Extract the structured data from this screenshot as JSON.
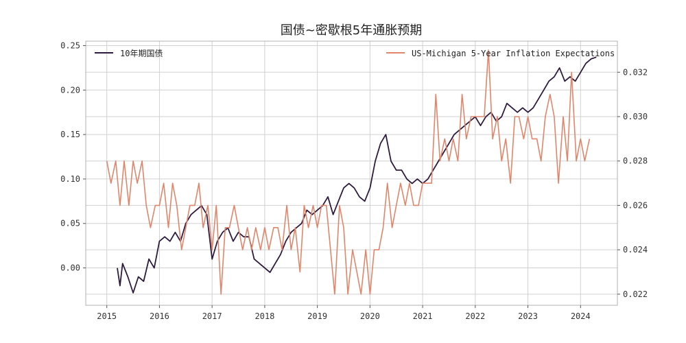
{
  "chart_data": {
    "type": "line",
    "title": "国债~密歇根5年通胀预期",
    "x_ticks": [
      "2015",
      "2016",
      "2017",
      "2018",
      "2019",
      "2020",
      "2021",
      "2022",
      "2023",
      "2024"
    ],
    "xlim": [
      2014.6,
      2024.7
    ],
    "grid": true,
    "left_axis": {
      "ylim": [
        -0.042,
        0.255
      ],
      "ticks": [
        0.0,
        0.05,
        0.1,
        0.15,
        0.2,
        0.25
      ],
      "tick_labels": [
        "0.00",
        "0.05",
        "0.10",
        "0.15",
        "0.20",
        "0.25"
      ]
    },
    "right_axis": {
      "ylim": [
        0.0215,
        0.0334
      ],
      "ticks": [
        0.022,
        0.024,
        0.026,
        0.028,
        0.03,
        0.032
      ],
      "tick_labels": [
        "0.022",
        "0.024",
        "0.026",
        "0.028",
        "0.030",
        "0.032"
      ]
    },
    "series": [
      {
        "name": "10年期国债",
        "axis": "left",
        "color": "#2e1a3e",
        "legend": "top-left",
        "x": [
          2015.2,
          2015.25,
          2015.3,
          2015.4,
          2015.5,
          2015.6,
          2015.7,
          2015.8,
          2015.9,
          2016.0,
          2016.1,
          2016.2,
          2016.3,
          2016.4,
          2016.5,
          2016.6,
          2016.7,
          2016.8,
          2016.9,
          2017.0,
          2017.1,
          2017.2,
          2017.3,
          2017.4,
          2017.5,
          2017.6,
          2017.7,
          2017.8,
          2017.9,
          2018.0,
          2018.1,
          2018.2,
          2018.3,
          2018.4,
          2018.5,
          2018.6,
          2018.7,
          2018.8,
          2018.9,
          2019.0,
          2019.1,
          2019.2,
          2019.3,
          2019.4,
          2019.5,
          2019.6,
          2019.7,
          2019.8,
          2019.9,
          2020.0,
          2020.1,
          2020.2,
          2020.3,
          2020.4,
          2020.5,
          2020.6,
          2020.7,
          2020.8,
          2020.9,
          2021.0,
          2021.1,
          2021.2,
          2021.3,
          2021.4,
          2021.5,
          2021.6,
          2021.7,
          2021.8,
          2021.9,
          2022.0,
          2022.1,
          2022.2,
          2022.3,
          2022.4,
          2022.5,
          2022.6,
          2022.7,
          2022.8,
          2022.9,
          2023.0,
          2023.1,
          2023.2,
          2023.3,
          2023.4,
          2023.5,
          2023.6,
          2023.7,
          2023.8,
          2023.9,
          2024.0,
          2024.1,
          2024.2,
          2024.3
        ],
        "values": [
          0.0,
          -0.02,
          0.005,
          -0.01,
          -0.028,
          -0.01,
          -0.015,
          0.01,
          0.0,
          0.03,
          0.035,
          0.03,
          0.04,
          0.03,
          0.05,
          0.06,
          0.065,
          0.07,
          0.06,
          0.01,
          0.03,
          0.04,
          0.045,
          0.03,
          0.04,
          0.035,
          0.035,
          0.01,
          0.005,
          0.0,
          -0.005,
          0.005,
          0.015,
          0.03,
          0.04,
          0.045,
          0.05,
          0.065,
          0.06,
          0.065,
          0.07,
          0.08,
          0.06,
          0.075,
          0.09,
          0.095,
          0.09,
          0.08,
          0.075,
          0.09,
          0.12,
          0.14,
          0.15,
          0.12,
          0.11,
          0.11,
          0.1,
          0.095,
          0.1,
          0.095,
          0.1,
          0.11,
          0.12,
          0.13,
          0.14,
          0.15,
          0.155,
          0.16,
          0.165,
          0.17,
          0.16,
          0.17,
          0.175,
          0.165,
          0.17,
          0.185,
          0.18,
          0.175,
          0.18,
          0.175,
          0.18,
          0.19,
          0.2,
          0.21,
          0.215,
          0.225,
          0.21,
          0.215,
          0.21,
          0.22,
          0.23,
          0.235,
          0.237
        ]
      },
      {
        "name": "US-Michigan 5-Year Inflation Expectations",
        "axis": "right",
        "color": "#e0856a",
        "legend": "top-right",
        "x": [
          2015.0,
          2015.08,
          2015.17,
          2015.25,
          2015.33,
          2015.42,
          2015.5,
          2015.58,
          2015.67,
          2015.75,
          2015.83,
          2015.92,
          2016.0,
          2016.08,
          2016.17,
          2016.25,
          2016.33,
          2016.42,
          2016.5,
          2016.58,
          2016.67,
          2016.75,
          2016.83,
          2016.92,
          2017.0,
          2017.08,
          2017.17,
          2017.25,
          2017.33,
          2017.42,
          2017.5,
          2017.58,
          2017.67,
          2017.75,
          2017.83,
          2017.92,
          2018.0,
          2018.08,
          2018.17,
          2018.25,
          2018.33,
          2018.42,
          2018.5,
          2018.58,
          2018.67,
          2018.75,
          2018.83,
          2018.92,
          2019.0,
          2019.08,
          2019.17,
          2019.25,
          2019.33,
          2019.42,
          2019.5,
          2019.58,
          2019.67,
          2019.75,
          2019.83,
          2019.92,
          2020.0,
          2020.08,
          2020.17,
          2020.25,
          2020.33,
          2020.42,
          2020.5,
          2020.58,
          2020.67,
          2020.75,
          2020.83,
          2020.92,
          2021.0,
          2021.08,
          2021.17,
          2021.25,
          2021.33,
          2021.42,
          2021.5,
          2021.58,
          2021.67,
          2021.75,
          2021.83,
          2021.92,
          2022.0,
          2022.08,
          2022.17,
          2022.25,
          2022.33,
          2022.42,
          2022.5,
          2022.58,
          2022.67,
          2022.75,
          2022.83,
          2022.92,
          2023.0,
          2023.08,
          2023.17,
          2023.25,
          2023.33,
          2023.42,
          2023.5,
          2023.58,
          2023.67,
          2023.75,
          2023.83,
          2023.92,
          2024.0,
          2024.08,
          2024.17
        ],
        "values": [
          0.028,
          0.027,
          0.028,
          0.026,
          0.028,
          0.026,
          0.028,
          0.027,
          0.028,
          0.026,
          0.025,
          0.026,
          0.026,
          0.027,
          0.025,
          0.027,
          0.026,
          0.024,
          0.025,
          0.026,
          0.026,
          0.027,
          0.025,
          0.026,
          0.024,
          0.026,
          0.022,
          0.025,
          0.025,
          0.026,
          0.025,
          0.024,
          0.025,
          0.024,
          0.025,
          0.024,
          0.025,
          0.024,
          0.025,
          0.025,
          0.024,
          0.026,
          0.024,
          0.025,
          0.023,
          0.026,
          0.025,
          0.026,
          0.025,
          0.026,
          0.026,
          0.024,
          0.022,
          0.026,
          0.025,
          0.022,
          0.024,
          0.023,
          0.022,
          0.024,
          0.022,
          0.024,
          0.024,
          0.025,
          0.027,
          0.025,
          0.026,
          0.027,
          0.026,
          0.027,
          0.026,
          0.026,
          0.027,
          0.027,
          0.027,
          0.031,
          0.028,
          0.029,
          0.028,
          0.029,
          0.028,
          0.031,
          0.029,
          0.03,
          0.03,
          0.03,
          0.03,
          0.033,
          0.029,
          0.03,
          0.028,
          0.029,
          0.027,
          0.03,
          0.03,
          0.029,
          0.03,
          0.029,
          0.029,
          0.028,
          0.03,
          0.031,
          0.03,
          0.027,
          0.03,
          0.028,
          0.032,
          0.028,
          0.029,
          0.028,
          0.029
        ]
      }
    ]
  }
}
